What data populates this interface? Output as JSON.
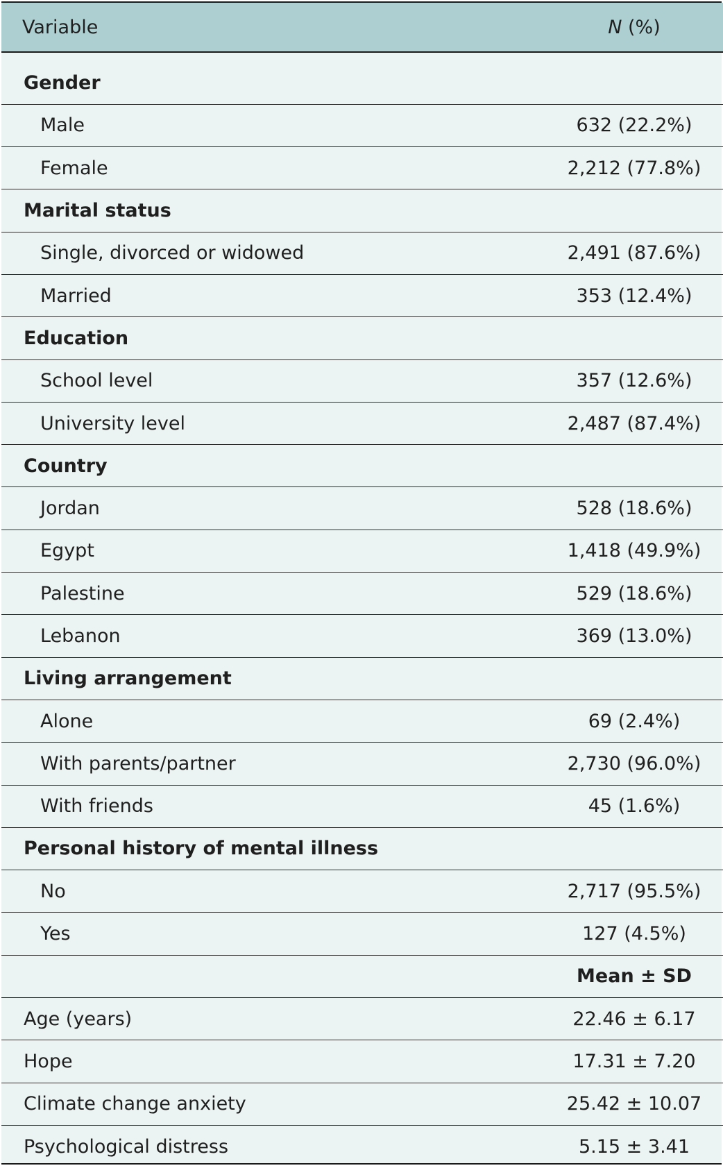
{
  "header": {
    "variable_label": "Variable",
    "n_italic": "N",
    "n_suffix": " (%)"
  },
  "rows": [
    {
      "type": "category",
      "label": "Gender",
      "value": ""
    },
    {
      "type": "item",
      "label": "Male",
      "value": "632 (22.2%)"
    },
    {
      "type": "item",
      "label": "Female",
      "value": "2,212 (77.8%)"
    },
    {
      "type": "category",
      "label": "Marital status",
      "value": ""
    },
    {
      "type": "item",
      "label": "Single, divorced or widowed",
      "value": "2,491 (87.6%)"
    },
    {
      "type": "item",
      "label": "Married",
      "value": "353 (12.4%)"
    },
    {
      "type": "category",
      "label": "Education",
      "value": ""
    },
    {
      "type": "item",
      "label": "School level",
      "value": "357 (12.6%)"
    },
    {
      "type": "item",
      "label": "University level",
      "value": "2,487 (87.4%)"
    },
    {
      "type": "category",
      "label": "Country",
      "value": ""
    },
    {
      "type": "item",
      "label": "Jordan",
      "value": "528 (18.6%)"
    },
    {
      "type": "item",
      "label": "Egypt",
      "value": "1,418 (49.9%)"
    },
    {
      "type": "item",
      "label": "Palestine",
      "value": "529 (18.6%)"
    },
    {
      "type": "item",
      "label": "Lebanon",
      "value": "369 (13.0%)"
    },
    {
      "type": "category",
      "label": "Living arrangement",
      "value": ""
    },
    {
      "type": "item",
      "label": "Alone",
      "value": "69 (2.4%)"
    },
    {
      "type": "item",
      "label": "With parents/partner",
      "value": "2,730 (96.0%)"
    },
    {
      "type": "item",
      "label": "With friends",
      "value": "45 (1.6%)"
    },
    {
      "type": "category",
      "label": "Personal history of mental illness",
      "value": ""
    },
    {
      "type": "item",
      "label": "No",
      "value": "2,717 (95.5%)"
    },
    {
      "type": "item",
      "label": "Yes",
      "value": "127 (4.5%)"
    },
    {
      "type": "subheader",
      "label": "",
      "value": "Mean ± SD"
    },
    {
      "type": "plain",
      "label": "Age (years)",
      "value": "22.46 ± 6.17"
    },
    {
      "type": "plain",
      "label": "Hope",
      "value": "17.31 ± 7.20"
    },
    {
      "type": "plain",
      "label": "Climate change anxiety",
      "value": "25.42 ± 10.07"
    },
    {
      "type": "plain",
      "label": "Psychological distress",
      "value": "5.15 ± 3.41"
    }
  ]
}
